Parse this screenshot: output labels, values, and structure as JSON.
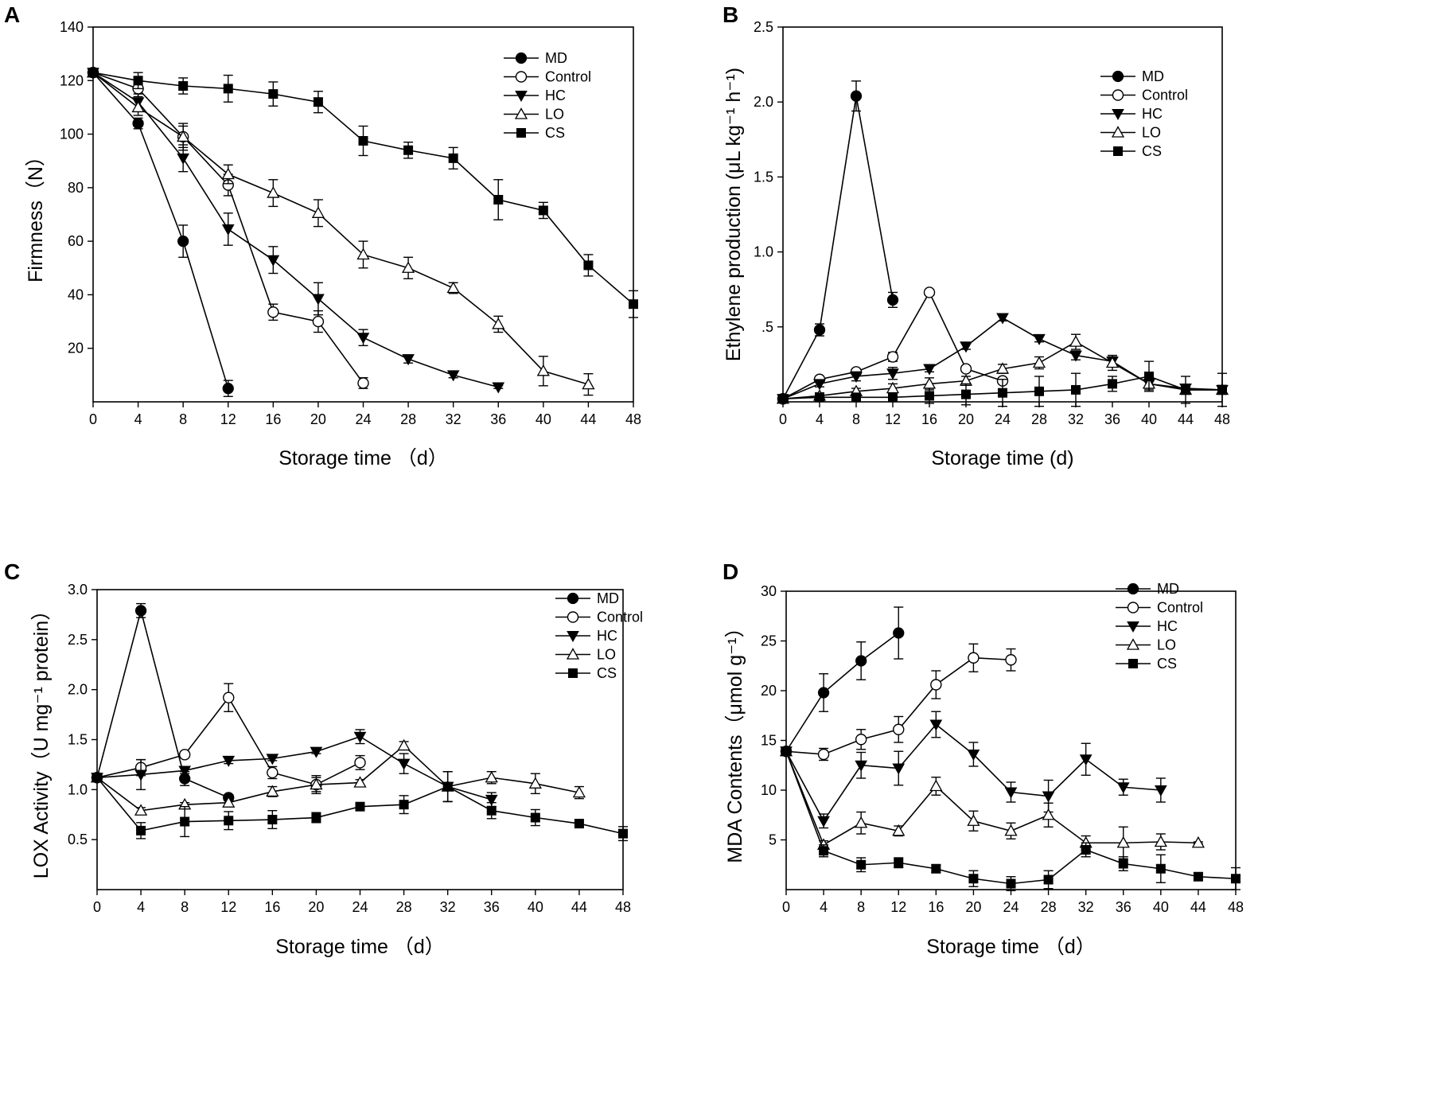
{
  "chart_data": [
    {
      "id": "A",
      "type": "line",
      "panel_label": "A",
      "xlabel": "Storage time （d）",
      "ylabel": "Firmness（N）",
      "xlim": [
        0,
        48
      ],
      "ylim": [
        0,
        140
      ],
      "xticks": [
        0,
        4,
        8,
        12,
        16,
        20,
        24,
        28,
        32,
        36,
        40,
        44,
        48
      ],
      "yticks": [
        20,
        40,
        60,
        80,
        100,
        120,
        140
      ],
      "ytick_labels": [
        "20",
        "40",
        "60",
        "80",
        "100",
        "120",
        "140"
      ],
      "legend": [
        "MD",
        "Control",
        "HC",
        "LO",
        "CS"
      ],
      "series": [
        {
          "name": "MD",
          "marker": "circle-filled",
          "x": [
            0,
            4,
            8,
            12
          ],
          "y": [
            123,
            104,
            60,
            5
          ],
          "err": [
            0,
            2,
            6,
            3
          ]
        },
        {
          "name": "Control",
          "marker": "circle-open",
          "x": [
            0,
            4,
            8,
            12,
            16,
            20,
            24
          ],
          "y": [
            123,
            117,
            99,
            81,
            33.5,
            30,
            7
          ],
          "err": [
            0,
            3,
            4,
            4,
            3,
            4,
            2
          ]
        },
        {
          "name": "HC",
          "marker": "triangle-down-filled",
          "x": [
            0,
            4,
            8,
            12,
            16,
            20,
            24,
            28,
            32,
            36
          ],
          "y": [
            123,
            112,
            91,
            64.5,
            53,
            38.5,
            24,
            16,
            10,
            5.5
          ],
          "err": [
            0,
            3,
            5,
            6,
            5,
            6,
            3,
            1.5,
            1,
            0.5
          ]
        },
        {
          "name": "LO",
          "marker": "triangle-up-open",
          "x": [
            0,
            4,
            8,
            12,
            16,
            20,
            24,
            28,
            32,
            36,
            40,
            44
          ],
          "y": [
            123,
            110,
            99,
            85,
            78,
            70.5,
            55,
            50,
            42.5,
            29,
            11.5,
            6.5
          ],
          "err": [
            0,
            3,
            5,
            3.5,
            5,
            5,
            5,
            4,
            2,
            3,
            5.5,
            4
          ]
        },
        {
          "name": "CS",
          "marker": "square-filled",
          "x": [
            0,
            4,
            8,
            12,
            16,
            20,
            24,
            28,
            32,
            36,
            40,
            44,
            48
          ],
          "y": [
            123,
            120,
            118,
            117,
            115,
            112,
            97.5,
            94,
            91,
            75.5,
            71.5,
            51,
            36.5
          ],
          "err": [
            0,
            3,
            3,
            5,
            4.5,
            4,
            5.5,
            3,
            4,
            7.5,
            3,
            4,
            5
          ]
        }
      ]
    },
    {
      "id": "B",
      "type": "line",
      "panel_label": "B",
      "xlabel": "Storage time (d)",
      "ylabel": "Ethylene production (μL kg⁻¹ h⁻¹)",
      "xlim": [
        0,
        48
      ],
      "ylim": [
        0,
        2.5
      ],
      "xticks": [
        0,
        4,
        8,
        12,
        16,
        20,
        24,
        28,
        32,
        36,
        40,
        44,
        48
      ],
      "yticks": [
        0.5,
        1.0,
        1.5,
        2.0,
        2.5
      ],
      "ytick_labels": [
        ".5",
        "1.0",
        "1.5",
        "2.0",
        "2.5"
      ],
      "legend": [
        "MD",
        "Control",
        "HC",
        "LO",
        "CS"
      ],
      "series": [
        {
          "name": "MD",
          "marker": "circle-filled",
          "x": [
            0,
            4,
            8,
            12
          ],
          "y": [
            0.02,
            0.48,
            2.04,
            0.68
          ],
          "err": [
            0,
            0.04,
            0.1,
            0.05
          ]
        },
        {
          "name": "Control",
          "marker": "circle-open",
          "x": [
            0,
            4,
            8,
            12,
            16,
            20,
            24
          ],
          "y": [
            0.02,
            0.15,
            0.2,
            0.3,
            0.73,
            0.22,
            0.14
          ],
          "err": [
            0,
            0.02,
            0.02,
            0.03,
            0.02,
            0.02,
            0.02
          ]
        },
        {
          "name": "HC",
          "marker": "triangle-down-filled",
          "x": [
            0,
            4,
            8,
            12,
            16,
            20,
            24,
            28,
            32,
            36,
            40,
            44,
            48
          ],
          "y": [
            0.02,
            0.12,
            0.17,
            0.19,
            0.22,
            0.37,
            0.56,
            0.42,
            0.31,
            0.27,
            0.12,
            0.09,
            0.08
          ],
          "err": [
            0,
            0.02,
            0.03,
            0.04,
            0.02,
            0.02,
            0.02,
            0.02,
            0.03,
            0.03,
            0.03,
            0.02,
            0.02
          ]
        },
        {
          "name": "LO",
          "marker": "triangle-up-open",
          "x": [
            0,
            4,
            8,
            12,
            16,
            20,
            24,
            28,
            32,
            36,
            40,
            44,
            48
          ],
          "y": [
            0.02,
            0.04,
            0.07,
            0.09,
            0.12,
            0.14,
            0.22,
            0.26,
            0.4,
            0.26,
            0.12,
            0.08,
            0.08
          ],
          "err": [
            0,
            0.02,
            0.02,
            0.03,
            0.04,
            0.03,
            0.03,
            0.04,
            0.05,
            0.05,
            0.04,
            0.03,
            0.03
          ]
        },
        {
          "name": "CS",
          "marker": "square-filled",
          "x": [
            0,
            4,
            8,
            12,
            16,
            20,
            24,
            28,
            32,
            36,
            40,
            44,
            48
          ],
          "y": [
            0.02,
            0.03,
            0.03,
            0.03,
            0.04,
            0.05,
            0.06,
            0.07,
            0.08,
            0.12,
            0.17,
            0.08,
            0.08
          ],
          "err": [
            0,
            0.01,
            0.01,
            0.01,
            0.05,
            0.07,
            0.09,
            0.1,
            0.11,
            0.05,
            0.1,
            0.09,
            0.11
          ]
        }
      ]
    },
    {
      "id": "C",
      "type": "line",
      "panel_label": "C",
      "xlabel": "Storage time （d）",
      "ylabel": "LOX Activity（U mg⁻¹ protein）",
      "xlim": [
        0,
        48
      ],
      "ylim": [
        0,
        3.0
      ],
      "xticks": [
        0,
        4,
        8,
        12,
        16,
        20,
        24,
        28,
        32,
        36,
        40,
        44,
        48
      ],
      "yticks": [
        0.5,
        1.0,
        1.5,
        2.0,
        2.5,
        3.0
      ],
      "ytick_labels": [
        "0.5",
        "1.0",
        "1.5",
        "2.0",
        "2.5",
        "3.0"
      ],
      "legend": [
        "MD",
        "Control",
        "HC",
        "LO",
        "CS"
      ],
      "series": [
        {
          "name": "MD",
          "marker": "circle-filled",
          "x": [
            0,
            4,
            8,
            12,
            16,
            20,
            24,
            28,
            32
          ],
          "y": [
            1.12,
            2.79,
            1.11,
            0.92,
            null,
            null,
            null,
            null,
            null
          ],
          "err": [
            0,
            0.07,
            0.07,
            0.03,
            0,
            0,
            0,
            0,
            0
          ]
        },
        {
          "name": "Control",
          "marker": "circle-open",
          "x": [
            0,
            4,
            8,
            12,
            16,
            20,
            24
          ],
          "y": [
            1.12,
            1.22,
            1.35,
            1.92,
            1.17,
            1.05,
            1.27
          ],
          "err": [
            0,
            0.08,
            0.03,
            0.14,
            0.06,
            0.09,
            0.07
          ]
        },
        {
          "name": "HC",
          "marker": "triangle-down-filled",
          "x": [
            0,
            4,
            8,
            12,
            16,
            20,
            24,
            28,
            32,
            36
          ],
          "y": [
            1.12,
            1.15,
            1.19,
            1.29,
            1.31,
            1.38,
            1.53,
            1.26,
            1.03,
            0.9
          ],
          "err": [
            0,
            0.15,
            0.03,
            0.03,
            0.02,
            0.02,
            0.07,
            0.1,
            0.15,
            0.07
          ]
        },
        {
          "name": "LO",
          "marker": "triangle-up-open",
          "x": [
            0,
            4,
            8,
            12,
            16,
            20,
            24,
            28,
            32,
            36,
            40,
            44
          ],
          "y": [
            1.12,
            0.79,
            0.85,
            0.87,
            0.98,
            1.05,
            1.07,
            1.44,
            1.03,
            1.12,
            1.06,
            0.97
          ],
          "err": [
            0,
            0.03,
            0.02,
            0.03,
            0.05,
            0.07,
            0.03,
            0.04,
            0.15,
            0.06,
            0.1,
            0.06
          ]
        },
        {
          "name": "CS",
          "marker": "square-filled",
          "x": [
            0,
            4,
            8,
            12,
            16,
            20,
            24,
            28,
            32,
            36,
            40,
            44,
            48
          ],
          "y": [
            1.12,
            0.59,
            0.68,
            0.69,
            0.7,
            0.72,
            0.83,
            0.85,
            1.03,
            0.79,
            0.72,
            0.66,
            0.56
          ],
          "err": [
            0,
            0.08,
            0.15,
            0.09,
            0.09,
            0.05,
            0.02,
            0.09,
            0.15,
            0.08,
            0.08,
            0.02,
            0.07
          ]
        }
      ]
    },
    {
      "id": "D",
      "type": "line",
      "panel_label": "D",
      "xlabel": "Storage time （d）",
      "ylabel": "MDA Contents（μmol g⁻¹）",
      "xlim": [
        0,
        48
      ],
      "ylim": [
        0,
        30
      ],
      "xticks": [
        0,
        4,
        8,
        12,
        16,
        20,
        24,
        28,
        32,
        36,
        40,
        44,
        48
      ],
      "yticks": [
        5,
        10,
        15,
        20,
        25,
        30
      ],
      "ytick_labels": [
        "5",
        "10",
        "15",
        "20",
        "25",
        "30"
      ],
      "legend": [
        "MD",
        "Control",
        "HC",
        "LO",
        "CS"
      ],
      "series": [
        {
          "name": "MD",
          "marker": "circle-filled",
          "x": [
            0,
            4,
            8,
            12
          ],
          "y": [
            13.9,
            19.8,
            23.0,
            25.8
          ],
          "err": [
            0,
            1.9,
            1.9,
            2.6
          ]
        },
        {
          "name": "Control",
          "marker": "circle-open",
          "x": [
            0,
            4,
            8,
            12,
            16,
            20,
            24
          ],
          "y": [
            13.9,
            13.6,
            15.1,
            16.1,
            20.6,
            23.3,
            23.1
          ],
          "err": [
            0,
            0.6,
            1.0,
            1.3,
            1.4,
            1.4,
            1.1
          ]
        },
        {
          "name": "HC",
          "marker": "triangle-down-filled",
          "x": [
            0,
            4,
            8,
            12,
            16,
            20,
            24,
            28,
            32,
            36,
            40
          ],
          "y": [
            13.9,
            6.9,
            12.5,
            12.2,
            16.6,
            13.6,
            9.8,
            9.4,
            13.1,
            10.3,
            10.0
          ],
          "err": [
            0,
            0.7,
            1.3,
            1.7,
            1.3,
            1.2,
            1.0,
            1.6,
            1.6,
            0.8,
            1.2
          ]
        },
        {
          "name": "LO",
          "marker": "triangle-up-open",
          "x": [
            0,
            4,
            8,
            12,
            16,
            20,
            24,
            28,
            32,
            36,
            40,
            44
          ],
          "y": [
            13.9,
            4.5,
            6.7,
            5.9,
            10.4,
            6.9,
            5.9,
            7.5,
            4.7,
            4.7,
            4.8,
            4.7
          ],
          "err": [
            0,
            0.4,
            1.1,
            0.5,
            0.9,
            1.0,
            0.8,
            1.2,
            0.7,
            1.6,
            0.8,
            0.1
          ]
        },
        {
          "name": "CS",
          "marker": "square-filled",
          "x": [
            0,
            4,
            8,
            12,
            16,
            20,
            24,
            28,
            32,
            36,
            40,
            44,
            48
          ],
          "y": [
            13.9,
            3.9,
            2.5,
            2.7,
            2.1,
            1.1,
            0.6,
            1.0,
            4.0,
            2.6,
            2.1,
            1.3,
            1.1
          ],
          "err": [
            0,
            0.6,
            0.7,
            0.5,
            0.4,
            0.8,
            0.7,
            0.9,
            0.7,
            0.7,
            1.4,
            0.4,
            1.1
          ]
        }
      ]
    }
  ]
}
